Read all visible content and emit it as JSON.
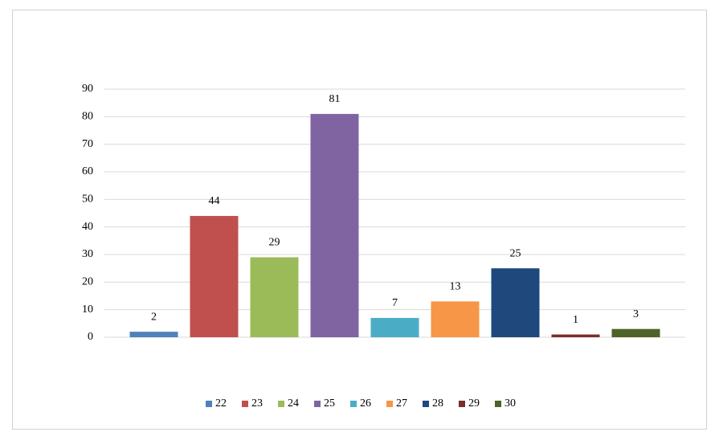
{
  "chart_data": {
    "type": "bar",
    "categories": [
      null
    ],
    "series": [
      {
        "name": "22",
        "color": "#4f81bd",
        "values": [
          2
        ]
      },
      {
        "name": "23",
        "color": "#c0504d",
        "values": [
          44
        ]
      },
      {
        "name": "24",
        "color": "#9bbb59",
        "values": [
          29
        ]
      },
      {
        "name": "25",
        "color": "#8064a2",
        "values": [
          81
        ]
      },
      {
        "name": "26",
        "color": "#4bacc6",
        "values": [
          7
        ]
      },
      {
        "name": "27",
        "color": "#f79646",
        "values": [
          13
        ]
      },
      {
        "name": "28",
        "color": "#1f497d",
        "values": [
          25
        ]
      },
      {
        "name": "29",
        "color": "#7b2c2c",
        "values": [
          1
        ]
      },
      {
        "name": "30",
        "color": "#4f6228",
        "values": [
          3
        ]
      }
    ],
    "ylim": [
      0,
      90
    ],
    "yticks": [
      0,
      10,
      20,
      30,
      40,
      50,
      60,
      70,
      80,
      90
    ],
    "grid": true,
    "legend": "bottom"
  }
}
